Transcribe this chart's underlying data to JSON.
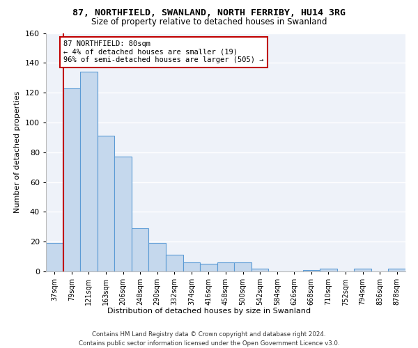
{
  "title1": "87, NORTHFIELD, SWANLAND, NORTH FERRIBY, HU14 3RG",
  "title2": "Size of property relative to detached houses in Swanland",
  "xlabel": "Distribution of detached houses by size in Swanland",
  "ylabel": "Number of detached properties",
  "categories": [
    "37sqm",
    "79sqm",
    "121sqm",
    "163sqm",
    "206sqm",
    "248sqm",
    "290sqm",
    "332sqm",
    "374sqm",
    "416sqm",
    "458sqm",
    "500sqm",
    "542sqm",
    "584sqm",
    "626sqm",
    "668sqm",
    "710sqm",
    "752sqm",
    "794sqm",
    "836sqm",
    "878sqm"
  ],
  "values": [
    19,
    123,
    134,
    91,
    77,
    29,
    19,
    11,
    6,
    5,
    6,
    6,
    2,
    0,
    0,
    1,
    2,
    0,
    2,
    0,
    2
  ],
  "bar_color": "#c5d8ed",
  "bar_edge_color": "#5b9bd5",
  "highlight_edge_color": "#c00000",
  "annotation_text": "87 NORTHFIELD: 80sqm\n← 4% of detached houses are smaller (19)\n96% of semi-detached houses are larger (505) →",
  "annotation_box_edge": "#c00000",
  "annotation_box_face": "#ffffff",
  "ylim": [
    0,
    160
  ],
  "yticks": [
    0,
    20,
    40,
    60,
    80,
    100,
    120,
    140,
    160
  ],
  "footer1": "Contains HM Land Registry data © Crown copyright and database right 2024.",
  "footer2": "Contains public sector information licensed under the Open Government Licence v3.0.",
  "plot_bg_color": "#eef2f9",
  "grid_color": "#ffffff"
}
